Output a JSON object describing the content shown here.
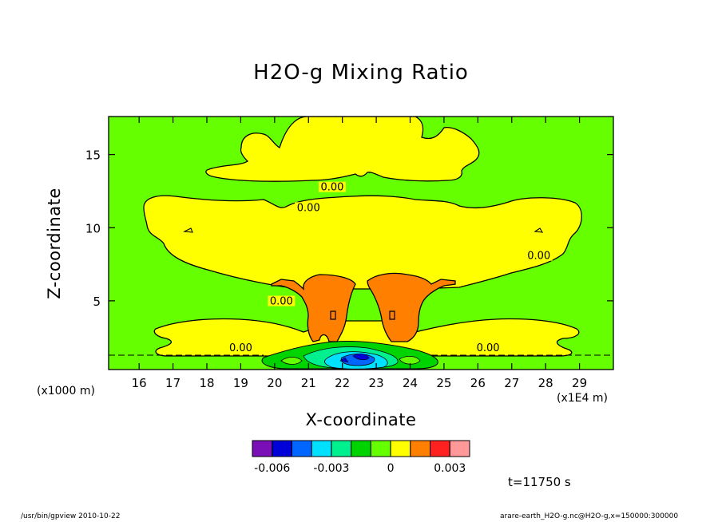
{
  "chart_data": {
    "type": "heatmap",
    "title": "H2O-g Mixing Ratio",
    "xlabel": "X-coordinate",
    "ylabel": "Z-coordinate",
    "x_unit_label": "(x1E4 m)",
    "y_unit_label": "(x1000 m)",
    "xlim": [
      15.1,
      30.0
    ],
    "ylim": [
      0.3,
      17.6
    ],
    "x_ticks": [
      16,
      17,
      18,
      19,
      20,
      21,
      22,
      23,
      24,
      25,
      26,
      27,
      28,
      29
    ],
    "y_ticks": [
      5,
      10,
      15
    ],
    "contour_labels": [
      {
        "text": "0.00",
        "x": 21.7,
        "z": 12.6
      },
      {
        "text": "0.00",
        "x": 21.0,
        "z": 11.2
      },
      {
        "text": "0.00",
        "x": 27.8,
        "z": 7.9
      },
      {
        "text": "0.00",
        "x": 20.2,
        "z": 4.8
      },
      {
        "text": "0.00",
        "x": 19.0,
        "z": 1.6
      },
      {
        "text": "0.00",
        "x": 26.3,
        "z": 1.6
      }
    ],
    "colorbar": {
      "colors": [
        "#7a0fb8",
        "#0000d8",
        "#0066ff",
        "#00e0ff",
        "#00f090",
        "#00d400",
        "#66ff00",
        "#ffff00",
        "#ff7f00",
        "#ff2020",
        "#ff9999"
      ],
      "tick_labels": [
        "-0.006",
        "-0.003",
        "0",
        "0.003"
      ]
    },
    "palette": {
      "background": "#66ff00",
      "yellow": "#ffff00",
      "orange": "#ff7f00",
      "green": "#00d400",
      "cyan": "#00e0ff",
      "blue": "#0000d8"
    }
  },
  "annotations": {
    "timestamp": "t=11750 s",
    "footer_left": "/usr/bin/gpview   2010-10-22",
    "footer_right": "arare-earth_H2O-g.nc@H2O-g,x=150000:300000"
  }
}
